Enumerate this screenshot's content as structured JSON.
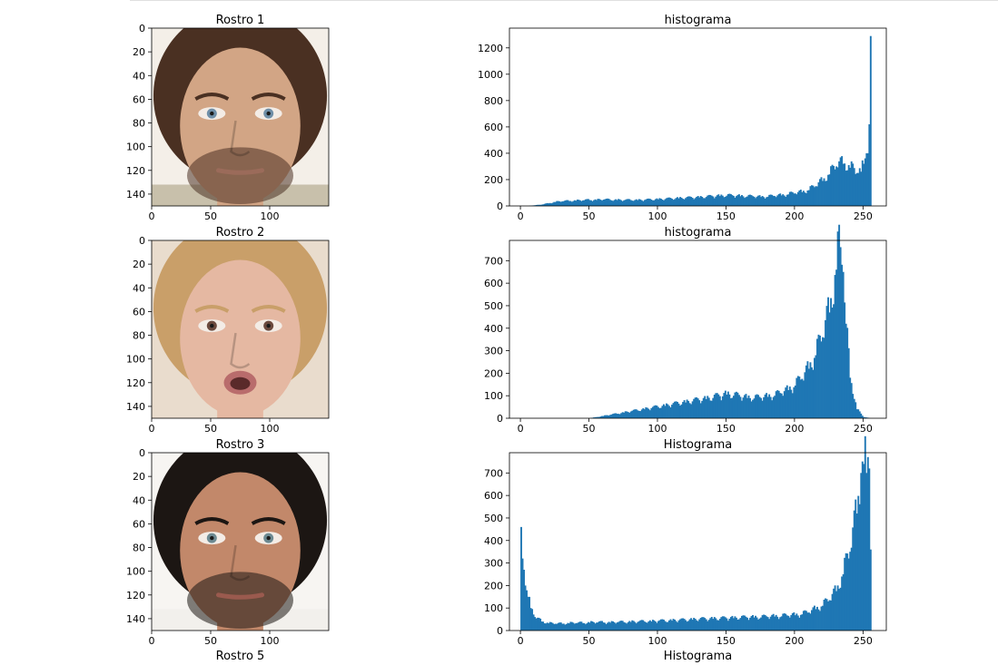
{
  "faces": [
    {
      "title": "Rostro 1",
      "skin": "#d2a585",
      "hair": "#4a3022",
      "eye": "#6f8fa8",
      "lip": "#9b6b5a",
      "bg": "#f4efe8",
      "beard": true,
      "shirt": "#c8c0ab"
    },
    {
      "title": "Rostro 2",
      "skin": "#e5b8a2",
      "hair": "#c99f69",
      "eye": "#6b4a3e",
      "lip": "#b96c6c",
      "bg": "#e9dccd",
      "beard": false,
      "shirt": ""
    },
    {
      "title": "Rostro 3",
      "skin": "#c2886a",
      "hair": "#1c1613",
      "eye": "#6d8a92",
      "lip": "#9a5a4e",
      "bg": "#f7f5f2",
      "beard": true,
      "shirt": "#f2f0ec"
    }
  ],
  "partial_titles": {
    "face": "Rostro 5",
    "hist": "Histograma"
  },
  "face_axis": {
    "x_ticks": [
      "0",
      "50",
      "100"
    ],
    "y_ticks": [
      "0",
      "20",
      "40",
      "60",
      "80",
      "100",
      "120",
      "140"
    ],
    "xlim": [
      0,
      150
    ],
    "ylim": [
      0,
      150
    ]
  },
  "bar_color": "#1f77b4",
  "chart_data": [
    {
      "type": "bar",
      "title": "histograma",
      "xlabel": "",
      "ylabel": "",
      "x_ticks": [
        0,
        50,
        100,
        150,
        200,
        250
      ],
      "y_ticks": [
        0,
        200,
        400,
        600,
        800,
        1000,
        1200
      ],
      "xlim": [
        -8,
        267
      ],
      "ylim": [
        0,
        1350
      ],
      "grid": false,
      "categories": [
        0,
        5,
        10,
        15,
        20,
        25,
        30,
        35,
        40,
        45,
        50,
        55,
        60,
        65,
        70,
        75,
        80,
        85,
        90,
        95,
        100,
        105,
        110,
        115,
        120,
        125,
        130,
        135,
        140,
        145,
        150,
        155,
        160,
        165,
        170,
        175,
        180,
        185,
        190,
        195,
        200,
        205,
        210,
        215,
        220,
        225,
        230,
        235,
        240,
        245,
        248,
        250,
        252,
        253,
        254,
        255
      ],
      "values": [
        0,
        0,
        5,
        10,
        20,
        30,
        35,
        38,
        40,
        42,
        45,
        45,
        48,
        46,
        45,
        43,
        45,
        44,
        45,
        48,
        50,
        52,
        55,
        58,
        60,
        62,
        65,
        68,
        72,
        75,
        78,
        76,
        74,
        72,
        70,
        68,
        70,
        75,
        80,
        88,
        95,
        105,
        120,
        150,
        190,
        240,
        300,
        320,
        290,
        250,
        260,
        320,
        400,
        400,
        620,
        1290
      ]
    },
    {
      "type": "bar",
      "title": "histograma",
      "xlabel": "",
      "ylabel": "",
      "x_ticks": [
        0,
        50,
        100,
        150,
        200,
        250
      ],
      "y_ticks": [
        0,
        100,
        200,
        300,
        400,
        500,
        600,
        700
      ],
      "xlim": [
        -8,
        267
      ],
      "ylim": [
        0,
        790
      ],
      "grid": false,
      "categories": [
        0,
        5,
        10,
        15,
        20,
        25,
        30,
        35,
        40,
        45,
        50,
        55,
        60,
        65,
        70,
        75,
        80,
        85,
        90,
        95,
        100,
        105,
        110,
        115,
        120,
        125,
        130,
        135,
        140,
        145,
        150,
        155,
        160,
        165,
        170,
        175,
        180,
        185,
        190,
        195,
        200,
        205,
        210,
        215,
        220,
        225,
        230,
        233,
        235,
        237,
        240,
        245,
        250,
        255
      ],
      "values": [
        0,
        0,
        0,
        0,
        0,
        0,
        0,
        0,
        0,
        0,
        0,
        5,
        10,
        15,
        20,
        25,
        30,
        35,
        40,
        45,
        50,
        55,
        60,
        65,
        70,
        75,
        80,
        85,
        90,
        98,
        105,
        100,
        95,
        90,
        88,
        90,
        95,
        100,
        110,
        125,
        145,
        175,
        220,
        280,
        360,
        470,
        660,
        760,
        650,
        420,
        180,
        40,
        5,
        0
      ]
    },
    {
      "type": "bar",
      "title": "Histograma",
      "xlabel": "",
      "ylabel": "",
      "x_ticks": [
        0,
        50,
        100,
        150,
        200,
        250
      ],
      "y_ticks": [
        0,
        100,
        200,
        300,
        400,
        500,
        600,
        700
      ],
      "xlim": [
        -8,
        267
      ],
      "ylim": [
        0,
        790
      ],
      "grid": false,
      "categories": [
        0,
        1,
        2,
        3,
        5,
        7,
        10,
        15,
        20,
        25,
        30,
        35,
        40,
        45,
        50,
        55,
        60,
        65,
        70,
        75,
        80,
        85,
        90,
        95,
        100,
        105,
        110,
        115,
        120,
        125,
        130,
        135,
        140,
        145,
        150,
        155,
        160,
        165,
        170,
        175,
        180,
        185,
        190,
        195,
        200,
        205,
        210,
        215,
        220,
        225,
        230,
        235,
        240,
        245,
        248,
        250,
        252,
        254,
        255
      ],
      "values": [
        460,
        320,
        270,
        200,
        150,
        100,
        60,
        40,
        32,
        30,
        30,
        32,
        33,
        33,
        35,
        35,
        36,
        35,
        36,
        37,
        38,
        38,
        40,
        40,
        42,
        42,
        44,
        45,
        46,
        48,
        50,
        50,
        52,
        52,
        54,
        55,
        56,
        57,
        58,
        58,
        60,
        62,
        63,
        65,
        68,
        72,
        80,
        95,
        110,
        135,
        175,
        250,
        350,
        520,
        700,
        740,
        700,
        720,
        360
      ]
    }
  ]
}
